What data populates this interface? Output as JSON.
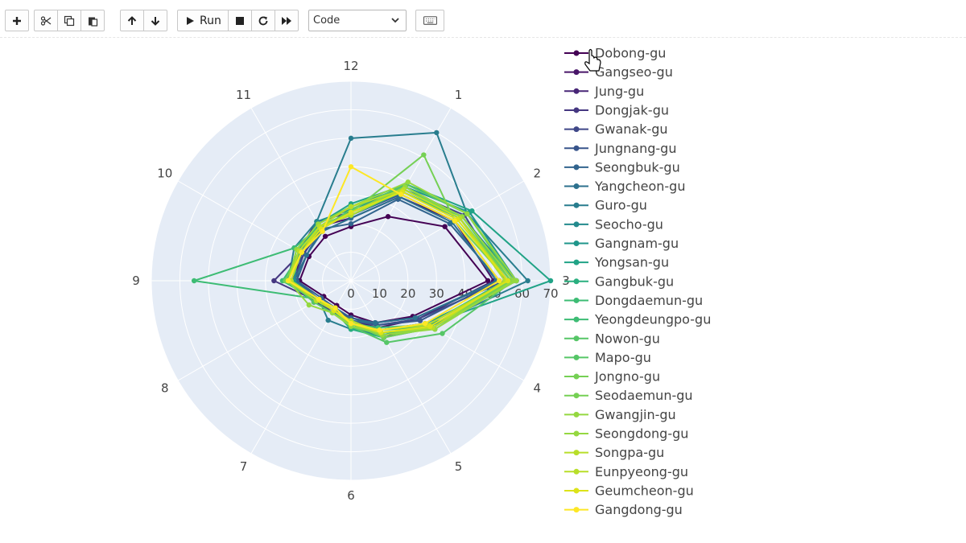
{
  "toolbar": {
    "buttons": [
      {
        "name": "insert-cell-button",
        "icon": "plus-icon"
      },
      {
        "name": "cut-button",
        "icon": "scissors-icon"
      },
      {
        "name": "copy-button",
        "icon": "copy-icon"
      },
      {
        "name": "paste-button",
        "icon": "clipboard-icon"
      },
      {
        "name": "move-up-button",
        "icon": "arrow-up-icon"
      },
      {
        "name": "move-down-button",
        "icon": "arrow-down-icon"
      },
      {
        "name": "run-button",
        "icon": "play-icon"
      },
      {
        "name": "stop-button",
        "icon": "stop-icon"
      },
      {
        "name": "restart-button",
        "icon": "refresh-icon"
      },
      {
        "name": "fast-forward-button",
        "icon": "fast-forward-icon"
      },
      {
        "name": "command-palette-button",
        "icon": "keyboard-icon"
      }
    ],
    "run_label": "Run",
    "cell_type": "Code"
  },
  "chart_data": {
    "type": "radar",
    "title": "",
    "angular_categories": [
      "12",
      "1",
      "2",
      "3",
      "4",
      "5",
      "6",
      "7",
      "8",
      "9",
      "10",
      "11"
    ],
    "radial_range": [
      0,
      70
    ],
    "radial_ticks": [
      "0",
      "10",
      "20",
      "30",
      "40",
      "50",
      "60",
      "70"
    ],
    "legend_position": "right",
    "colorscale": "viridis",
    "series": [
      {
        "name": "Dobong-gu",
        "color": "#440154",
        "values": [
          19,
          26,
          38,
          48,
          25,
          17,
          12,
          10,
          11,
          18,
          17,
          18
        ]
      },
      {
        "name": "Gangseo-gu",
        "color": "#481568",
        "values": [
          22,
          34,
          42,
          50,
          27,
          19,
          14,
          11,
          13,
          21,
          19,
          22
        ]
      },
      {
        "name": "Jung-gu",
        "color": "#482677",
        "values": [
          24,
          36,
          44,
          55,
          31,
          23,
          16,
          12,
          15,
          22,
          21,
          24
        ]
      },
      {
        "name": "Dongjak-gu",
        "color": "#453781",
        "values": [
          26,
          38,
          45,
          58,
          30,
          20,
          14,
          13,
          14,
          27,
          20,
          23
        ]
      },
      {
        "name": "Gwanak-gu",
        "color": "#3f4788",
        "values": [
          24,
          37,
          46,
          54,
          27,
          18,
          13,
          12,
          14,
          20,
          19,
          21
        ]
      },
      {
        "name": "Jungnang-gu",
        "color": "#39558c",
        "values": [
          23,
          35,
          42,
          52,
          28,
          18,
          14,
          11,
          13,
          19,
          20,
          22
        ]
      },
      {
        "name": "Seongbuk-gu",
        "color": "#32648e",
        "values": [
          20,
          33,
          40,
          52,
          26,
          17,
          13,
          11,
          12,
          19,
          18,
          21
        ]
      },
      {
        "name": "Yangcheon-gu",
        "color": "#2d718e",
        "values": [
          22,
          34,
          41,
          51,
          26,
          17,
          14,
          12,
          13,
          20,
          18,
          20
        ]
      },
      {
        "name": "Guro-gu",
        "color": "#287d8e",
        "values": [
          50,
          60,
          47,
          62,
          32,
          22,
          17,
          16,
          13,
          22,
          23,
          24
        ]
      },
      {
        "name": "Seocho-gu",
        "color": "#238a8d",
        "values": [
          25,
          37,
          45,
          58,
          33,
          22,
          16,
          12,
          14,
          23,
          20,
          24
        ]
      },
      {
        "name": "Gangnam-gu",
        "color": "#1f968b",
        "values": [
          26,
          38,
          48,
          58,
          30,
          20,
          17,
          12,
          14,
          20,
          21,
          22
        ]
      },
      {
        "name": "Yongsan-gu",
        "color": "#20a386",
        "values": [
          27,
          39,
          49,
          70,
          31,
          22,
          16,
          12,
          14,
          22,
          21,
          23
        ]
      },
      {
        "name": "Gangbuk-gu",
        "color": "#29af7f",
        "values": [
          24,
          37,
          45,
          56,
          33,
          23,
          17,
          12,
          14,
          24,
          20,
          21
        ]
      },
      {
        "name": "Dongdaemun-gu",
        "color": "#3dbc74",
        "values": [
          23,
          36,
          44,
          54,
          31,
          19,
          15,
          11,
          13,
          55,
          23,
          22
        ]
      },
      {
        "name": "Yeongdeungpo-gu",
        "color": "#3dbc74",
        "values": [
          24,
          37,
          44,
          56,
          32,
          20,
          16,
          12,
          14,
          24,
          20,
          21
        ]
      },
      {
        "name": "Nowon-gu",
        "color": "#56c667",
        "values": [
          25,
          39,
          47,
          57,
          37,
          25,
          16,
          13,
          15,
          22,
          22,
          21
        ]
      },
      {
        "name": "Mapo-gu",
        "color": "#56c667",
        "values": [
          24,
          37,
          45,
          56,
          34,
          21,
          15,
          12,
          14,
          23,
          21,
          22
        ]
      },
      {
        "name": "Jongno-gu",
        "color": "#75d054",
        "values": [
          24,
          51,
          42,
          55,
          33,
          22,
          16,
          12,
          14,
          23,
          21,
          22
        ]
      },
      {
        "name": "Seodaemun-gu",
        "color": "#75d054",
        "values": [
          24,
          38,
          44,
          56,
          33,
          23,
          15,
          12,
          14,
          22,
          20,
          22
        ]
      },
      {
        "name": "Gwangjin-gu",
        "color": "#95d840",
        "values": [
          26,
          40,
          47,
          58,
          33,
          21,
          16,
          13,
          17,
          22,
          22,
          23
        ]
      },
      {
        "name": "Seongdong-gu",
        "color": "#95d840",
        "values": [
          24,
          38,
          45,
          57,
          34,
          22,
          15,
          12,
          14,
          22,
          20,
          21
        ]
      },
      {
        "name": "Songpa-gu",
        "color": "#b8de29",
        "values": [
          23,
          37,
          44,
          54,
          33,
          21,
          14,
          12,
          13,
          21,
          20,
          22
        ]
      },
      {
        "name": "Eunpyeong-gu",
        "color": "#b8de29",
        "values": [
          26,
          37,
          44,
          55,
          31,
          20,
          15,
          12,
          14,
          22,
          21,
          22
        ]
      },
      {
        "name": "Geumcheon-gu",
        "color": "#dce319",
        "values": [
          24,
          36,
          43,
          55,
          32,
          21,
          15,
          12,
          13,
          22,
          20,
          21
        ]
      },
      {
        "name": "Gangdong-gu",
        "color": "#fde725",
        "values": [
          40,
          35,
          42,
          52,
          30,
          20,
          15,
          11,
          13,
          22,
          20,
          20
        ]
      }
    ]
  }
}
